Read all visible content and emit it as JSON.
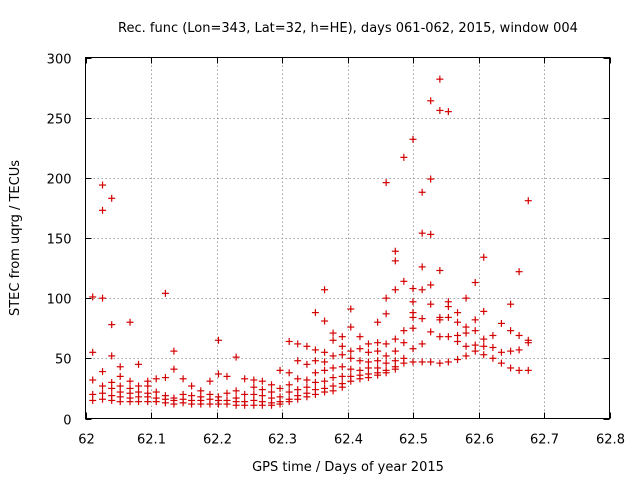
{
  "chart_data": {
    "type": "scatter",
    "title": "Rec. func (Lon=343, Lat=32, h=HE), days 061-062, 2015, window 004",
    "xlabel": "GPS time / Days of year 2015",
    "ylabel": "STEC from uqrg / TECUs",
    "xlim": [
      62,
      62.8
    ],
    "ylim": [
      0,
      300
    ],
    "xticks": [
      62,
      62.1,
      62.2,
      62.3,
      62.4,
      62.5,
      62.6,
      62.7,
      62.8
    ],
    "xtick_labels": [
      "62",
      "62.1",
      "62.2",
      "62.3",
      "62.4",
      "62.5",
      "62.6",
      "62.7",
      "62.8"
    ],
    "yticks": [
      0,
      50,
      100,
      150,
      200,
      250,
      300
    ],
    "ytick_labels": [
      "0",
      "50",
      "100",
      "150",
      "200",
      "250",
      "300"
    ],
    "grid": true,
    "marker": "+",
    "color": "#d40000",
    "points": [
      [
        62.011,
        101
      ],
      [
        62.011,
        55
      ],
      [
        62.011,
        32
      ],
      [
        62.011,
        20
      ],
      [
        62.011,
        15
      ],
      [
        62.026,
        194
      ],
      [
        62.026,
        173
      ],
      [
        62.026,
        100
      ],
      [
        62.026,
        39
      ],
      [
        62.026,
        27
      ],
      [
        62.026,
        21
      ],
      [
        62.026,
        16
      ],
      [
        62.04,
        183
      ],
      [
        62.04,
        78
      ],
      [
        62.04,
        52
      ],
      [
        62.04,
        30
      ],
      [
        62.04,
        25
      ],
      [
        62.04,
        19
      ],
      [
        62.04,
        15
      ],
      [
        62.053,
        43
      ],
      [
        62.053,
        35
      ],
      [
        62.053,
        27
      ],
      [
        62.053,
        22
      ],
      [
        62.053,
        18
      ],
      [
        62.053,
        14
      ],
      [
        62.068,
        80
      ],
      [
        62.068,
        31
      ],
      [
        62.068,
        25
      ],
      [
        62.068,
        21
      ],
      [
        62.068,
        17
      ],
      [
        62.068,
        14
      ],
      [
        62.081,
        45
      ],
      [
        62.081,
        27
      ],
      [
        62.081,
        22
      ],
      [
        62.081,
        18
      ],
      [
        62.081,
        14
      ],
      [
        62.095,
        31
      ],
      [
        62.095,
        27
      ],
      [
        62.095,
        21
      ],
      [
        62.095,
        18
      ],
      [
        62.095,
        14
      ],
      [
        62.108,
        33
      ],
      [
        62.108,
        22
      ],
      [
        62.108,
        17
      ],
      [
        62.108,
        14
      ],
      [
        62.122,
        104
      ],
      [
        62.122,
        34
      ],
      [
        62.122,
        19
      ],
      [
        62.122,
        16
      ],
      [
        62.122,
        13
      ],
      [
        62.135,
        56
      ],
      [
        62.135,
        41
      ],
      [
        62.135,
        17
      ],
      [
        62.135,
        15
      ],
      [
        62.135,
        12
      ],
      [
        62.149,
        33
      ],
      [
        62.149,
        20
      ],
      [
        62.149,
        16
      ],
      [
        62.149,
        13
      ],
      [
        62.162,
        27
      ],
      [
        62.162,
        19
      ],
      [
        62.162,
        15
      ],
      [
        62.162,
        12
      ],
      [
        62.176,
        23
      ],
      [
        62.176,
        18
      ],
      [
        62.176,
        15
      ],
      [
        62.176,
        12
      ],
      [
        62.19,
        31
      ],
      [
        62.19,
        20
      ],
      [
        62.19,
        16
      ],
      [
        62.19,
        12
      ],
      [
        62.203,
        65
      ],
      [
        62.203,
        37
      ],
      [
        62.203,
        18
      ],
      [
        62.203,
        15
      ],
      [
        62.203,
        12
      ],
      [
        62.216,
        35
      ],
      [
        62.216,
        21
      ],
      [
        62.216,
        15
      ],
      [
        62.216,
        12
      ],
      [
        62.23,
        51
      ],
      [
        62.23,
        23
      ],
      [
        62.23,
        17
      ],
      [
        62.23,
        14
      ],
      [
        62.23,
        11
      ],
      [
        62.243,
        33
      ],
      [
        62.243,
        20
      ],
      [
        62.243,
        14
      ],
      [
        62.243,
        11
      ],
      [
        62.257,
        32
      ],
      [
        62.257,
        26
      ],
      [
        62.257,
        20
      ],
      [
        62.257,
        15
      ],
      [
        62.257,
        11
      ],
      [
        62.27,
        31
      ],
      [
        62.27,
        24
      ],
      [
        62.27,
        19
      ],
      [
        62.27,
        14
      ],
      [
        62.27,
        11
      ],
      [
        62.284,
        28
      ],
      [
        62.284,
        22
      ],
      [
        62.284,
        17
      ],
      [
        62.284,
        13
      ],
      [
        62.284,
        11
      ],
      [
        62.297,
        40
      ],
      [
        62.297,
        25
      ],
      [
        62.297,
        18
      ],
      [
        62.297,
        14
      ],
      [
        62.297,
        12
      ],
      [
        62.311,
        64
      ],
      [
        62.311,
        38
      ],
      [
        62.311,
        28
      ],
      [
        62.311,
        22
      ],
      [
        62.311,
        16
      ],
      [
        62.311,
        14
      ],
      [
        62.324,
        62
      ],
      [
        62.324,
        48
      ],
      [
        62.324,
        33
      ],
      [
        62.324,
        24
      ],
      [
        62.324,
        19
      ],
      [
        62.324,
        16
      ],
      [
        62.338,
        60
      ],
      [
        62.338,
        45
      ],
      [
        62.338,
        32
      ],
      [
        62.338,
        26
      ],
      [
        62.338,
        21
      ],
      [
        62.338,
        18
      ],
      [
        62.351,
        88
      ],
      [
        62.351,
        57
      ],
      [
        62.351,
        48
      ],
      [
        62.351,
        38
      ],
      [
        62.351,
        30
      ],
      [
        62.351,
        24
      ],
      [
        62.351,
        20
      ],
      [
        62.365,
        107
      ],
      [
        62.365,
        81
      ],
      [
        62.365,
        55
      ],
      [
        62.365,
        47
      ],
      [
        62.365,
        40
      ],
      [
        62.365,
        31
      ],
      [
        62.365,
        25
      ],
      [
        62.365,
        22
      ],
      [
        62.378,
        71
      ],
      [
        62.378,
        65
      ],
      [
        62.378,
        52
      ],
      [
        62.378,
        42
      ],
      [
        62.378,
        34
      ],
      [
        62.378,
        27
      ],
      [
        62.378,
        23
      ],
      [
        62.392,
        68
      ],
      [
        62.392,
        60
      ],
      [
        62.392,
        53
      ],
      [
        62.392,
        43
      ],
      [
        62.392,
        35
      ],
      [
        62.392,
        29
      ],
      [
        62.392,
        26
      ],
      [
        62.405,
        91
      ],
      [
        62.405,
        76
      ],
      [
        62.405,
        56
      ],
      [
        62.405,
        50
      ],
      [
        62.405,
        41
      ],
      [
        62.405,
        35
      ],
      [
        62.405,
        31
      ],
      [
        62.419,
        68
      ],
      [
        62.419,
        58
      ],
      [
        62.419,
        48
      ],
      [
        62.419,
        40
      ],
      [
        62.419,
        36
      ],
      [
        62.419,
        33
      ],
      [
        62.432,
        62
      ],
      [
        62.432,
        55
      ],
      [
        62.432,
        47
      ],
      [
        62.432,
        42
      ],
      [
        62.432,
        37
      ],
      [
        62.432,
        34
      ],
      [
        62.446,
        80
      ],
      [
        62.446,
        63
      ],
      [
        62.446,
        56
      ],
      [
        62.446,
        48
      ],
      [
        62.446,
        42
      ],
      [
        62.446,
        38
      ],
      [
        62.446,
        36
      ],
      [
        62.459,
        196
      ],
      [
        62.459,
        100
      ],
      [
        62.459,
        87
      ],
      [
        62.459,
        62
      ],
      [
        62.459,
        52
      ],
      [
        62.459,
        46
      ],
      [
        62.459,
        40
      ],
      [
        62.459,
        38
      ],
      [
        62.473,
        139
      ],
      [
        62.473,
        131
      ],
      [
        62.473,
        107
      ],
      [
        62.473,
        66
      ],
      [
        62.473,
        56
      ],
      [
        62.473,
        48
      ],
      [
        62.473,
        43
      ],
      [
        62.473,
        41
      ],
      [
        62.486,
        217
      ],
      [
        62.486,
        114
      ],
      [
        62.486,
        73
      ],
      [
        62.486,
        63
      ],
      [
        62.486,
        50
      ],
      [
        62.486,
        46
      ],
      [
        62.5,
        232
      ],
      [
        62.5,
        108
      ],
      [
        62.5,
        97
      ],
      [
        62.5,
        88
      ],
      [
        62.5,
        84
      ],
      [
        62.5,
        75
      ],
      [
        62.5,
        58
      ],
      [
        62.5,
        47
      ],
      [
        62.514,
        188
      ],
      [
        62.514,
        154
      ],
      [
        62.514,
        126
      ],
      [
        62.514,
        107
      ],
      [
        62.514,
        83
      ],
      [
        62.514,
        62
      ],
      [
        62.514,
        47
      ],
      [
        62.527,
        264
      ],
      [
        62.527,
        199
      ],
      [
        62.527,
        153
      ],
      [
        62.527,
        111
      ],
      [
        62.527,
        95
      ],
      [
        62.527,
        72
      ],
      [
        62.527,
        47
      ],
      [
        62.541,
        282
      ],
      [
        62.541,
        256
      ],
      [
        62.541,
        123
      ],
      [
        62.541,
        84
      ],
      [
        62.541,
        82
      ],
      [
        62.541,
        68
      ],
      [
        62.541,
        46
      ],
      [
        62.554,
        255
      ],
      [
        62.554,
        97
      ],
      [
        62.554,
        93
      ],
      [
        62.554,
        84
      ],
      [
        62.554,
        68
      ],
      [
        62.554,
        47
      ],
      [
        62.568,
        88
      ],
      [
        62.568,
        80
      ],
      [
        62.568,
        69
      ],
      [
        62.568,
        64
      ],
      [
        62.568,
        49
      ],
      [
        62.581,
        100
      ],
      [
        62.581,
        76
      ],
      [
        62.581,
        71
      ],
      [
        62.581,
        60
      ],
      [
        62.581,
        52
      ],
      [
        62.595,
        113
      ],
      [
        62.595,
        82
      ],
      [
        62.595,
        73
      ],
      [
        62.595,
        61
      ],
      [
        62.595,
        56
      ],
      [
        62.608,
        134
      ],
      [
        62.608,
        89
      ],
      [
        62.608,
        66
      ],
      [
        62.608,
        60
      ],
      [
        62.608,
        53
      ],
      [
        62.622,
        69
      ],
      [
        62.622,
        59
      ],
      [
        62.622,
        50
      ],
      [
        62.635,
        79
      ],
      [
        62.635,
        55
      ],
      [
        62.635,
        46
      ],
      [
        62.649,
        95
      ],
      [
        62.649,
        73
      ],
      [
        62.649,
        56
      ],
      [
        62.649,
        42
      ],
      [
        62.662,
        122
      ],
      [
        62.662,
        69
      ],
      [
        62.662,
        57
      ],
      [
        62.662,
        40
      ],
      [
        62.676,
        181
      ],
      [
        62.676,
        65
      ],
      [
        62.676,
        63
      ],
      [
        62.676,
        40
      ]
    ]
  }
}
